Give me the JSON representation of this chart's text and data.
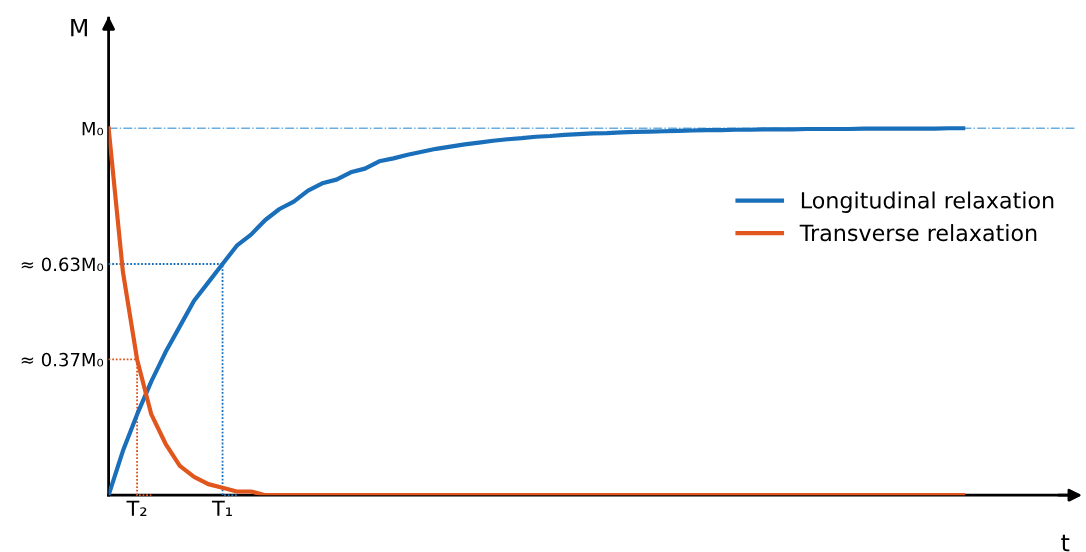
{
  "chart_data": {
    "type": "line",
    "xlabel": "t",
    "ylabel": "M",
    "categories": [
      null,
      null,
      "T₂",
      null,
      null,
      null,
      null,
      null,
      "T₁",
      null,
      null,
      null,
      null,
      null,
      null,
      null,
      null,
      null,
      null,
      null,
      null,
      null,
      null,
      null,
      null,
      null,
      null,
      null,
      null,
      null,
      null,
      null,
      null,
      null,
      null,
      null,
      null,
      null,
      null,
      null,
      null,
      null,
      null,
      null,
      null,
      null,
      null,
      null,
      null,
      null,
      null,
      null,
      null,
      null,
      null,
      null,
      null,
      null,
      null,
      null,
      null
    ],
    "ylim": [
      0,
      1.3
    ],
    "yticks": [
      {
        "value": 0.37,
        "label": "≈ 0.37M₀"
      },
      {
        "value": 0.63,
        "label": "≈ 0.63M₀"
      },
      {
        "value": 1,
        "label": "M₀"
      }
    ],
    "legend": "right",
    "marker": "none",
    "series": [
      {
        "name": "Longitudinal relaxation",
        "color": "#1a6fba",
        "line_style": "solid",
        "values": [
          0,
          0.12,
          0.22,
          0.31,
          0.39,
          0.46,
          0.53,
          0.58,
          0.63,
          0.68,
          0.71,
          0.75,
          0.78,
          0.8,
          0.83,
          0.85,
          0.86,
          0.88,
          0.89,
          0.91,
          0.918,
          0.928,
          0.936,
          0.944,
          0.95,
          0.956,
          0.961,
          0.966,
          0.97,
          0.973,
          0.977,
          0.979,
          0.982,
          0.984,
          0.986,
          0.987,
          0.989,
          0.99,
          0.991,
          0.992,
          0.993,
          0.994,
          0.995,
          0.995,
          0.996,
          0.996,
          0.997,
          0.997,
          0.997,
          0.998,
          0.998,
          0.998,
          0.998,
          0.999,
          0.999,
          0.999,
          0.999,
          0.999,
          0.999,
          1,
          1
        ]
      },
      {
        "name": "Transverse relaxation",
        "color": "#e0561c",
        "line_style": "solid",
        "values": [
          1,
          0.61,
          0.37,
          0.22,
          0.14,
          0.08,
          0.05,
          0.03,
          0.02,
          0.01,
          0.01,
          0,
          0,
          0,
          0,
          0,
          0,
          0,
          0,
          0,
          0,
          0,
          0,
          0,
          0,
          0,
          0,
          0,
          0,
          0,
          0,
          0,
          0,
          0,
          0,
          0,
          0,
          0,
          0,
          0,
          0,
          0,
          0,
          0,
          0,
          0,
          0,
          0,
          0,
          0,
          0,
          0,
          0,
          0,
          0,
          0,
          0,
          0,
          0,
          0,
          0
        ]
      },
      {
        "type": "step",
        "color": "#1a6fba",
        "line_style": "dotted",
        "values": [
          0.63,
          0.63,
          0.63,
          0.63,
          0.63,
          0.63,
          0.63,
          0.63,
          0.63,
          0,
          null,
          null,
          null,
          null,
          null,
          null,
          null,
          null,
          null,
          null,
          null,
          null,
          null,
          null,
          null,
          null,
          null,
          null,
          null,
          null,
          null,
          null,
          null,
          null,
          null,
          null,
          null,
          null,
          null,
          null,
          null,
          null,
          null,
          null,
          null,
          null,
          null,
          null,
          null,
          null,
          null,
          null,
          null,
          null,
          null,
          null,
          null,
          null,
          null,
          null,
          null
        ]
      },
      {
        "type": "step",
        "color": "#e0561c",
        "line_style": "dotted",
        "values": [
          0.37,
          0.37,
          0.37,
          0,
          null,
          null,
          null,
          null,
          null,
          null,
          null,
          null,
          null,
          null,
          null,
          null,
          null,
          null,
          null,
          null,
          null,
          null,
          null,
          null,
          null,
          null,
          null,
          null,
          null,
          null,
          null,
          null,
          null,
          null,
          null,
          null,
          null,
          null,
          null,
          null,
          null,
          null,
          null,
          null,
          null,
          null,
          null,
          null,
          null,
          null,
          null,
          null,
          null,
          null,
          null,
          null,
          null,
          null,
          null,
          null,
          null
        ]
      }
    ],
    "ref_lines": [
      {
        "axis": "y",
        "value": 1,
        "color": "#6aaee0",
        "line_style": "dashdot"
      }
    ]
  }
}
